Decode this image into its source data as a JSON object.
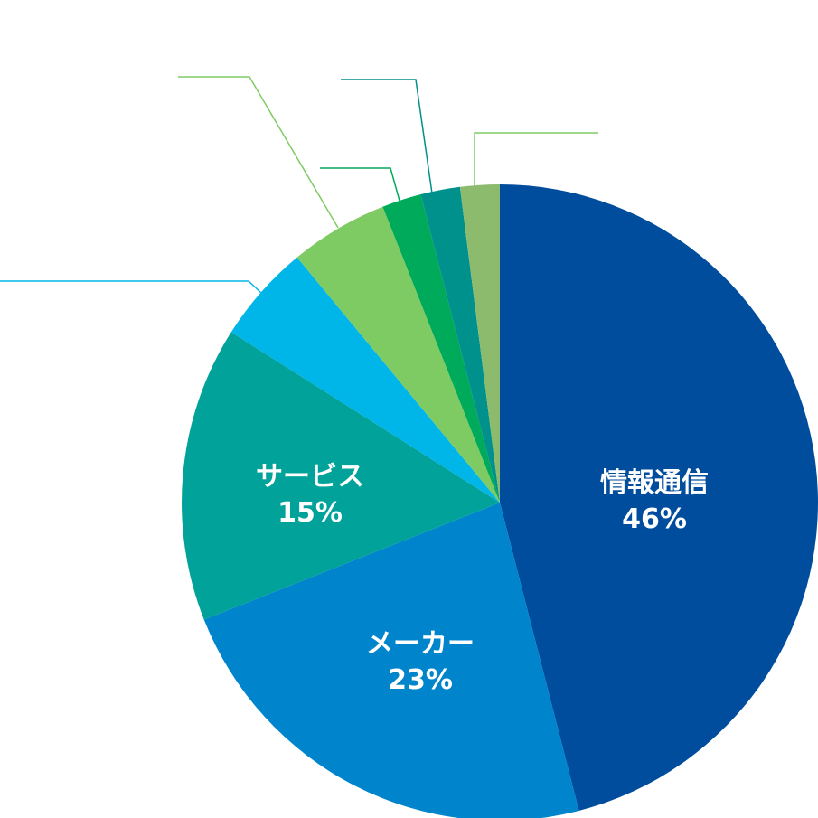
{
  "chart_data": {
    "type": "pie",
    "slices": [
      {
        "label": "情報通信",
        "value": 46,
        "value_label": "46%",
        "color": "#004C9D"
      },
      {
        "label": "メーカー",
        "value": 23,
        "value_label": "23%",
        "color": "#0085CC"
      },
      {
        "label": "サービス",
        "value": 15,
        "value_label": "15%",
        "color": "#00A29A"
      },
      {
        "label": "",
        "value": 5,
        "value_label": "",
        "color": "#00B5E8"
      },
      {
        "label": "",
        "value": 5,
        "value_label": "",
        "color": "#7FCB63"
      },
      {
        "label": "",
        "value": 2,
        "value_label": "",
        "color": "#00AA5B"
      },
      {
        "label": "",
        "value": 2,
        "value_label": "",
        "color": "#00918C"
      },
      {
        "label": "",
        "value": 2,
        "value_label": "",
        "color": "#8DBB6E"
      }
    ],
    "start_angle": "12 o'clock",
    "direction": "clockwise",
    "legend": "none"
  }
}
